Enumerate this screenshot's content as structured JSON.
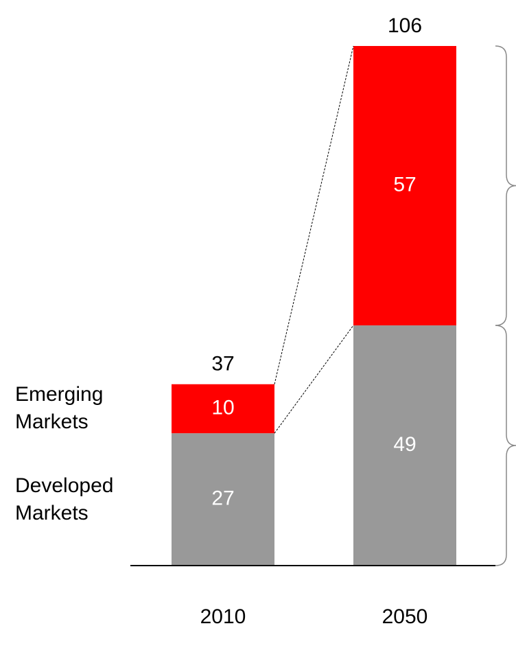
{
  "chart_data": {
    "type": "stacked_bar",
    "categories": [
      "2010",
      "2050"
    ],
    "series": [
      {
        "name": "Developed Markets",
        "color": "#999999",
        "values": [
          27,
          49
        ]
      },
      {
        "name": "Emerging Markets",
        "color": "#ff0000",
        "values": [
          10,
          57
        ]
      }
    ],
    "totals": [
      37,
      106
    ]
  }
}
